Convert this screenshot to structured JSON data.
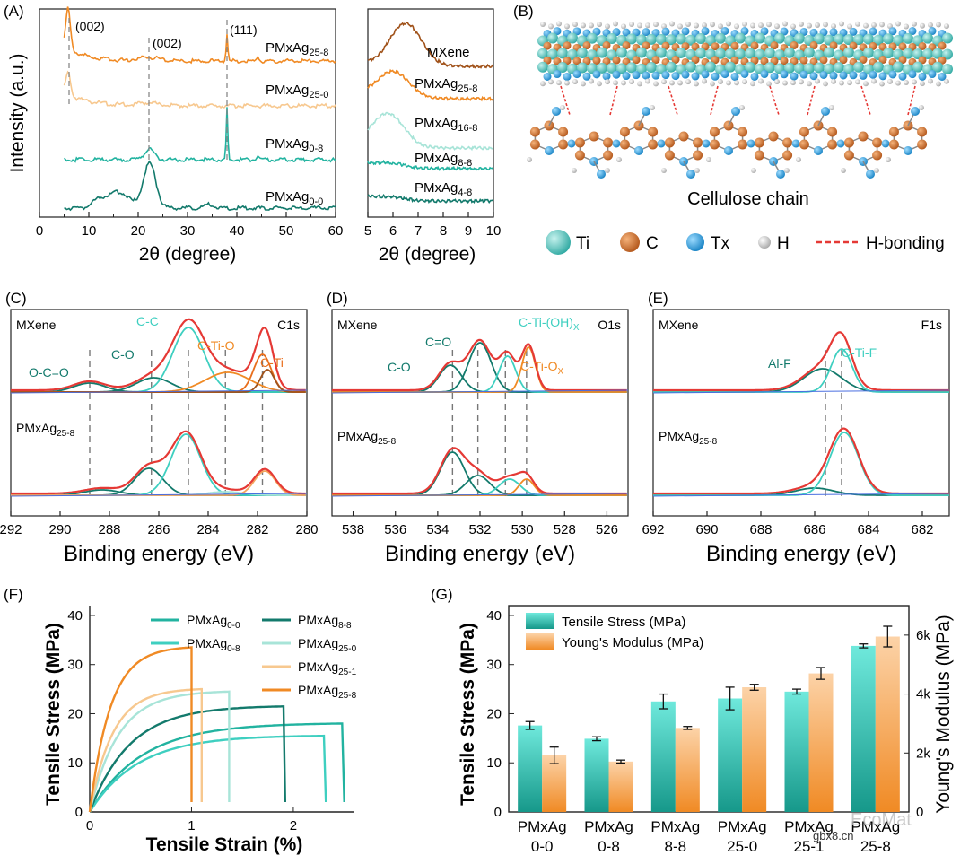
{
  "colors": {
    "orange": "#f08a24",
    "light_orange": "#f7c88f",
    "teal": "#22b3a0",
    "dark_teal": "#137a6c",
    "cyan": "#3ecfc0",
    "pale_teal": "#a8e4d8",
    "brown": "#a0521a",
    "red": "#e53935",
    "ti": "#4bc9c2",
    "c": "#d2691e",
    "tx": "#2aa6e0",
    "h": "#d4d4d4"
  },
  "panels": {
    "A": "(A)",
    "B": "(B)",
    "C": "(C)",
    "D": "(D)",
    "E": "(E)",
    "F": "(F)",
    "G": "(G)"
  },
  "panel_a": {
    "ylabel": "Intensity (a.u.)",
    "xlabel": "2θ (degree)",
    "xticks": [
      "0",
      "10",
      "20",
      "30",
      "40",
      "50",
      "60"
    ],
    "peaks": [
      "(002)",
      "(002)",
      "(111)"
    ],
    "labels": [
      "PMxAg",
      "PMxAg",
      "PMxAg",
      "PMxAg"
    ],
    "subs": [
      "25-8",
      "25-0",
      "0-8",
      "0-0"
    ],
    "right_xlabel": "2θ (degree)",
    "right_xticks": [
      "5",
      "6",
      "7",
      "8",
      "9",
      "10"
    ],
    "right_label_main": [
      "MXene",
      "PMxAg",
      "PMxAg",
      "PMxAg",
      "PMxAg"
    ],
    "right_label_sub": [
      "",
      "25-8",
      "16-8",
      "8-8",
      "4-8"
    ]
  },
  "panel_b": {
    "caption": "Cellulose chain",
    "legend": [
      "Ti",
      "C",
      "Tx",
      "H",
      "H-bonding"
    ]
  },
  "xps": [
    {
      "id": "C",
      "title_top": "MXene",
      "title_bot": "PMxAg",
      "title_bot_sub": "25-8",
      "element": "C1s",
      "peaks": [
        "O-C=O",
        "C-O",
        "C-C",
        "C-Ti-O",
        "C-Ti"
      ],
      "xlabel": "Binding energy (eV)",
      "xticks": [
        "292",
        "290",
        "288",
        "286",
        "284",
        "282",
        "280"
      ]
    },
    {
      "id": "D",
      "title_top": "MXene",
      "title_bot": "PMxAg",
      "title_bot_sub": "25-8",
      "element": "O1s",
      "peaks": [
        "C-O",
        "C=O",
        "C-Ti-(OH)",
        "C-Ti-O"
      ],
      "peak_subs": [
        "",
        "",
        "X",
        "X"
      ],
      "xlabel": "Binding energy (eV)",
      "xticks": [
        "538",
        "536",
        "534",
        "532",
        "530",
        "528",
        "526"
      ]
    },
    {
      "id": "E",
      "title_top": "MXene",
      "title_bot": "PMxAg",
      "title_bot_sub": "25-8",
      "element": "F1s",
      "peaks": [
        "Al-F",
        "C-Ti-F"
      ],
      "xlabel": "Binding energy (eV)",
      "xticks": [
        "692",
        "690",
        "688",
        "686",
        "684",
        "682"
      ]
    }
  ],
  "chart_data": [
    {
      "type": "line",
      "panel": "F",
      "title": "",
      "xlabel": "Tensile Strain (%)",
      "ylabel": "Tensile Stress (MPa)",
      "xlim": [
        0,
        2.6
      ],
      "ylim": [
        0,
        42
      ],
      "xticks": [
        "0",
        "1",
        "2"
      ],
      "yticks": [
        "0",
        "10",
        "20",
        "30",
        "40"
      ],
      "series": [
        {
          "name": "PMxAg",
          "sub": "0-0",
          "color": "#22b3a0",
          "break_x": 2.5,
          "max_y": 18
        },
        {
          "name": "PMxAg",
          "sub": "0-8",
          "color": "#3ecfc0",
          "break_x": 2.32,
          "max_y": 15.5
        },
        {
          "name": "PMxAg",
          "sub": "8-8",
          "color": "#137a6c",
          "break_x": 1.92,
          "max_y": 21.5
        },
        {
          "name": "PMxAg",
          "sub": "25-0",
          "color": "#a8e4d8",
          "break_x": 1.37,
          "max_y": 24.5
        },
        {
          "name": "PMxAg",
          "sub": "25-1",
          "color": "#f7c88f",
          "break_x": 1.1,
          "max_y": 25
        },
        {
          "name": "PMxAg",
          "sub": "25-8",
          "color": "#f08a24",
          "break_x": 1.0,
          "max_y": 33.5
        }
      ]
    },
    {
      "type": "bar",
      "panel": "G",
      "title": "",
      "ylabel": "Tensile Stress (MPa)",
      "y2label": "Young's Modulus (MPa)",
      "ylim": [
        0,
        42
      ],
      "y2lim": [
        0,
        7000
      ],
      "yticks": [
        "0",
        "10",
        "20",
        "30",
        "40"
      ],
      "y2ticks": [
        "0",
        "2k",
        "4k",
        "6k"
      ],
      "categories_top": [
        "PMxAg",
        "PMxAg",
        "PMxAg",
        "PMxAg",
        "PMxAg",
        "PMxAg"
      ],
      "categories_bot": [
        "0-0",
        "0-8",
        "8-8",
        "25-0",
        "25-1",
        "25-8"
      ],
      "series": [
        {
          "name": "Tensile Stress (MPa)",
          "values": [
            17.6,
            14.9,
            22.5,
            23.1,
            24.5,
            33.8
          ],
          "errors": [
            0.8,
            0.4,
            1.5,
            2.3,
            0.5,
            0.4
          ]
        },
        {
          "name": "Young's Modulus (MPa)",
          "values": [
            1920,
            1710,
            2850,
            4230,
            4700,
            5950
          ],
          "errors": [
            280,
            50,
            50,
            100,
            200,
            350
          ]
        }
      ],
      "watermark": "EcoMat",
      "watermark2": "gbx8.cn"
    }
  ]
}
